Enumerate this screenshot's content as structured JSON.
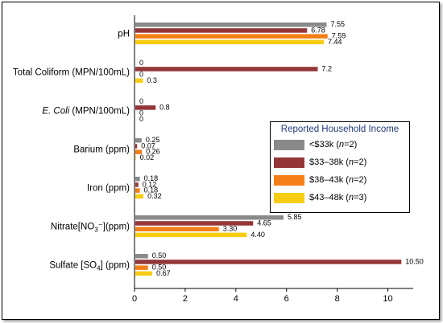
{
  "chart_data": {
    "type": "bar",
    "orientation": "horizontal",
    "categories": [
      {
        "label": "pH",
        "sub": "",
        "rest": ""
      },
      {
        "label": "Total Coliform (MPN/100mL)",
        "sub": "",
        "rest": ""
      },
      {
        "label": "E. Coli",
        "sub": "",
        "rest": " (MPN/100mL)"
      },
      {
        "label": "Barium (ppm)",
        "sub": "",
        "rest": ""
      },
      {
        "label": "Iron (ppm)",
        "sub": "",
        "rest": ""
      },
      {
        "label": "Nitrate[NO",
        "sub": "3",
        "rest": "⁻](ppm)"
      },
      {
        "label": "Sulfate [SO",
        "sub": "4",
        "rest": "] (ppm)"
      }
    ],
    "series": [
      {
        "name": "<$33k (n=2)",
        "name_main": "<$33k (",
        "name_n": "n",
        "name_end": "=2)",
        "color": "#8a8a8a",
        "values": [
          7.55,
          0,
          0,
          0.25,
          0.18,
          5.85,
          0.5
        ],
        "labels": [
          "7.55",
          "0",
          "0",
          "0.25",
          "0.18",
          "5.85",
          "0.50"
        ]
      },
      {
        "name": "$33–38k (n=2)",
        "name_main": "$33–38k (",
        "name_n": "n",
        "name_end": "=2)",
        "color": "#943638",
        "values": [
          6.78,
          7.2,
          0.8,
          0.07,
          0.12,
          4.65,
          10.5
        ],
        "labels": [
          "6.78",
          "7.2",
          "0.8",
          "0.07",
          "0.12",
          "4.65",
          "10.50"
        ]
      },
      {
        "name": "$38–43k (n=2)",
        "name_main": "$38–43k (",
        "name_n": "n",
        "name_end": "=2)",
        "color": "#f57f17",
        "values": [
          7.59,
          0,
          0,
          0.26,
          0.18,
          3.3,
          0.5
        ],
        "labels": [
          "7.59",
          "0",
          "0",
          "0.26",
          "0.18",
          "3.30",
          "0.50"
        ]
      },
      {
        "name": "$43–48k (n=3)",
        "name_main": "$43–48k (",
        "name_n": "n",
        "name_end": "=3)",
        "color": "#f7cd14",
        "values": [
          7.44,
          0.3,
          0,
          0.02,
          0.32,
          4.4,
          0.67
        ],
        "labels": [
          "7.44",
          "0.3",
          "0",
          "0.02",
          "0.32",
          "4.40",
          "0.67"
        ]
      }
    ],
    "xlim": [
      0,
      11
    ],
    "xticks": [
      0,
      2,
      4,
      6,
      8,
      10
    ],
    "xtick_labels": [
      "0",
      "2",
      "4",
      "6",
      "8",
      "10"
    ],
    "legend": {
      "title": "Reported Household Income",
      "placement": "right-middle"
    },
    "grid": false
  }
}
